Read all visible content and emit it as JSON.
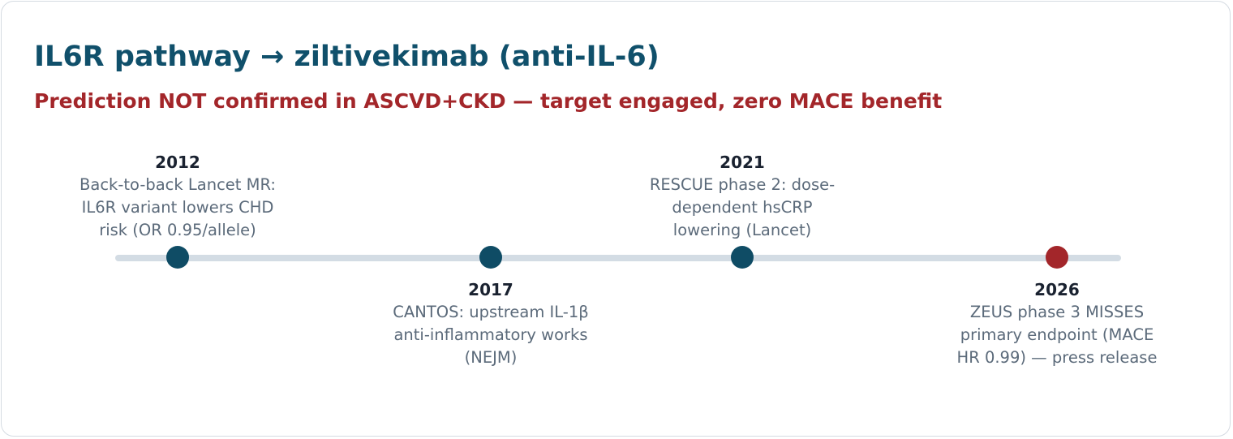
{
  "title": "IL6R pathway → ziltivekimab (anti-IL-6)",
  "subtitle": "Prediction NOT confirmed in ASCVD+CKD — target engaged, zero MACE benefit",
  "colors": {
    "title": "#10506b",
    "subtitle": "#a3262a",
    "milestone": "#0f4c65",
    "failed_milestone": "#a3262a",
    "track": "#d3dce4"
  },
  "events": [
    {
      "year": "2012",
      "text": "Back-to-back Lancet MR: IL6R variant lowers CHD risk (OR 0.95/allele)",
      "status": "milestone"
    },
    {
      "year": "2017",
      "text": "CANTOS: upstream IL-1β anti-inflammatory works (NEJM)",
      "status": "milestone"
    },
    {
      "year": "2021",
      "text": "RESCUE phase 2: dose-dependent hsCRP lowering (Lancet)",
      "status": "milestone"
    },
    {
      "year": "2026",
      "text": "ZEUS phase 3 MISSES primary endpoint (MACE HR 0.99) — press release",
      "status": "failed"
    }
  ]
}
